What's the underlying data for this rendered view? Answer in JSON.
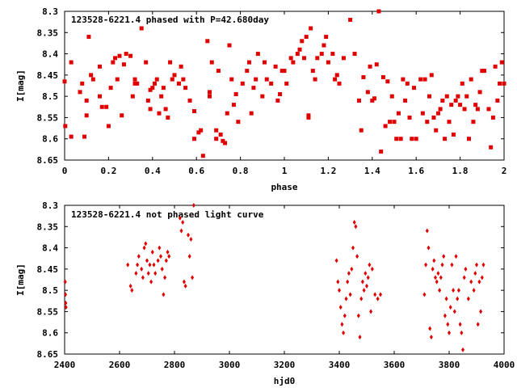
{
  "chart_data": [
    {
      "type": "scatter",
      "title": "123528-6221.4 phased with P=42.680day",
      "xlabel": "phase",
      "ylabel": "I[mag]",
      "xlim": [
        0,
        2
      ],
      "ylim": [
        8.3,
        8.65
      ],
      "y_inverted": true,
      "xticks": [
        "0",
        "0.2",
        "0.4",
        "0.6",
        "0.8",
        "1",
        "1.2",
        "1.4",
        "1.6",
        "1.8",
        "2"
      ],
      "xtick_values": [
        0,
        0.2,
        0.4,
        0.6,
        0.8,
        1.0,
        1.2,
        1.4,
        1.6,
        1.8,
        2.0
      ],
      "yticks": [
        "8.3",
        "8.35",
        "8.4",
        "8.45",
        "8.5",
        "8.55",
        "8.6",
        "8.65"
      ],
      "ytick_values": [
        8.3,
        8.35,
        8.4,
        8.45,
        8.5,
        8.55,
        8.6,
        8.65
      ],
      "marker_color": "#e00000",
      "marker": "square",
      "points": [
        [
          0.0,
          8.465
        ],
        [
          0.003,
          8.57
        ],
        [
          0.03,
          8.595
        ],
        [
          0.03,
          8.42
        ],
        [
          0.07,
          8.49
        ],
        [
          0.08,
          8.47
        ],
        [
          0.1,
          8.51
        ],
        [
          0.1,
          8.545
        ],
        [
          0.09,
          8.595
        ],
        [
          0.11,
          8.36
        ],
        [
          0.12,
          8.45
        ],
        [
          0.13,
          8.46
        ],
        [
          0.16,
          8.43
        ],
        [
          0.16,
          8.5
        ],
        [
          0.17,
          8.525
        ],
        [
          0.19,
          8.525
        ],
        [
          0.2,
          8.57
        ],
        [
          0.21,
          8.48
        ],
        [
          0.22,
          8.42
        ],
        [
          0.23,
          8.41
        ],
        [
          0.24,
          8.46
        ],
        [
          0.25,
          8.405
        ],
        [
          0.26,
          8.545
        ],
        [
          0.27,
          8.425
        ],
        [
          0.28,
          8.4
        ],
        [
          0.3,
          8.405
        ],
        [
          0.31,
          8.5
        ],
        [
          0.32,
          8.47
        ],
        [
          0.32,
          8.46
        ],
        [
          0.33,
          8.47
        ],
        [
          0.35,
          8.34
        ],
        [
          0.37,
          8.42
        ],
        [
          0.38,
          8.51
        ],
        [
          0.39,
          8.53
        ],
        [
          0.39,
          8.485
        ],
        [
          0.4,
          8.48
        ],
        [
          0.41,
          8.47
        ],
        [
          0.42,
          8.46
        ],
        [
          0.43,
          8.54
        ],
        [
          0.44,
          8.5
        ],
        [
          0.45,
          8.48
        ],
        [
          0.46,
          8.53
        ],
        [
          0.47,
          8.55
        ],
        [
          0.48,
          8.42
        ],
        [
          0.49,
          8.46
        ],
        [
          0.5,
          8.45
        ],
        [
          0.52,
          8.47
        ],
        [
          0.53,
          8.43
        ],
        [
          0.54,
          8.46
        ],
        [
          0.55,
          8.48
        ],
        [
          0.57,
          8.51
        ],
        [
          0.59,
          8.535
        ],
        [
          0.59,
          8.6
        ],
        [
          0.61,
          8.585
        ],
        [
          0.62,
          8.58
        ],
        [
          0.63,
          8.64
        ],
        [
          0.65,
          8.37
        ],
        [
          0.66,
          8.5
        ],
        [
          0.66,
          8.49
        ],
        [
          0.67,
          8.42
        ],
        [
          0.69,
          8.58
        ],
        [
          0.69,
          8.6
        ],
        [
          0.7,
          8.44
        ],
        [
          0.71,
          8.59
        ],
        [
          0.72,
          8.605
        ],
        [
          0.73,
          8.61
        ],
        [
          0.74,
          8.54
        ],
        [
          0.75,
          8.38
        ],
        [
          0.76,
          8.46
        ],
        [
          0.77,
          8.52
        ],
        [
          0.78,
          8.495
        ],
        [
          0.79,
          8.56
        ],
        [
          0.81,
          8.47
        ],
        [
          0.83,
          8.44
        ],
        [
          0.84,
          8.42
        ],
        [
          0.85,
          8.54
        ],
        [
          0.86,
          8.48
        ],
        [
          0.87,
          8.46
        ],
        [
          0.88,
          8.4
        ],
        [
          0.9,
          8.5
        ],
        [
          0.91,
          8.42
        ],
        [
          0.92,
          8.46
        ],
        [
          0.94,
          8.47
        ],
        [
          0.96,
          8.43
        ],
        [
          0.97,
          8.51
        ],
        [
          0.98,
          8.495
        ],
        [
          0.99,
          8.44
        ],
        [
          1.0,
          8.44
        ],
        [
          1.01,
          8.47
        ],
        [
          1.03,
          8.41
        ],
        [
          1.04,
          8.42
        ],
        [
          1.06,
          8.4
        ],
        [
          1.07,
          8.39
        ],
        [
          1.08,
          8.37
        ],
        [
          1.09,
          8.41
        ],
        [
          1.1,
          8.36
        ],
        [
          1.12,
          8.34
        ],
        [
          1.11,
          8.55
        ],
        [
          1.11,
          8.545
        ],
        [
          1.13,
          8.44
        ],
        [
          1.14,
          8.46
        ],
        [
          1.15,
          8.41
        ],
        [
          1.17,
          8.4
        ],
        [
          1.18,
          8.38
        ],
        [
          1.19,
          8.36
        ],
        [
          1.2,
          8.42
        ],
        [
          1.22,
          8.4
        ],
        [
          1.23,
          8.46
        ],
        [
          1.24,
          8.45
        ],
        [
          1.25,
          8.47
        ],
        [
          1.27,
          8.41
        ],
        [
          1.3,
          8.32
        ],
        [
          1.32,
          8.4
        ],
        [
          1.34,
          8.51
        ],
        [
          1.35,
          8.58
        ],
        [
          1.36,
          8.455
        ],
        [
          1.38,
          8.49
        ],
        [
          1.39,
          8.43
        ],
        [
          1.4,
          8.51
        ],
        [
          1.41,
          8.505
        ],
        [
          1.42,
          8.425
        ],
        [
          1.43,
          8.3
        ],
        [
          1.44,
          8.63
        ],
        [
          1.45,
          8.455
        ],
        [
          1.46,
          8.57
        ],
        [
          1.47,
          8.465
        ],
        [
          1.48,
          8.56
        ],
        [
          1.49,
          8.5
        ],
        [
          1.5,
          8.56
        ],
        [
          1.51,
          8.6
        ],
        [
          1.52,
          8.54
        ],
        [
          1.53,
          8.6
        ],
        [
          1.54,
          8.46
        ],
        [
          1.55,
          8.51
        ],
        [
          1.56,
          8.47
        ],
        [
          1.57,
          8.55
        ],
        [
          1.58,
          8.6
        ],
        [
          1.59,
          8.48
        ],
        [
          1.6,
          8.6
        ],
        [
          1.62,
          8.46
        ],
        [
          1.63,
          8.54
        ],
        [
          1.64,
          8.46
        ],
        [
          1.65,
          8.56
        ],
        [
          1.66,
          8.5
        ],
        [
          1.67,
          8.45
        ],
        [
          1.68,
          8.55
        ],
        [
          1.69,
          8.58
        ],
        [
          1.7,
          8.54
        ],
        [
          1.71,
          8.53
        ],
        [
          1.72,
          8.51
        ],
        [
          1.73,
          8.6
        ],
        [
          1.74,
          8.5
        ],
        [
          1.75,
          8.56
        ],
        [
          1.76,
          8.52
        ],
        [
          1.77,
          8.59
        ],
        [
          1.78,
          8.51
        ],
        [
          1.79,
          8.5
        ],
        [
          1.8,
          8.52
        ],
        [
          1.81,
          8.47
        ],
        [
          1.82,
          8.53
        ],
        [
          1.83,
          8.5
        ],
        [
          1.84,
          8.6
        ],
        [
          1.85,
          8.46
        ],
        [
          1.86,
          8.56
        ],
        [
          1.87,
          8.52
        ],
        [
          1.88,
          8.53
        ],
        [
          1.89,
          8.49
        ],
        [
          1.9,
          8.44
        ],
        [
          1.91,
          8.44
        ],
        [
          1.93,
          8.53
        ],
        [
          1.94,
          8.62
        ],
        [
          1.95,
          8.55
        ],
        [
          1.96,
          8.43
        ],
        [
          1.97,
          8.51
        ],
        [
          1.98,
          8.47
        ],
        [
          1.99,
          8.42
        ],
        [
          2.0,
          8.47
        ]
      ]
    },
    {
      "type": "scatter",
      "title": "123528-6221.4 not phased light curve",
      "xlabel": "hjd0",
      "ylabel": "I[mag]",
      "xlim": [
        2400,
        4000
      ],
      "ylim": [
        8.3,
        8.65
      ],
      "y_inverted": true,
      "xticks": [
        "2400",
        "2600",
        "2800",
        "3000",
        "3200",
        "3400",
        "3600",
        "3800",
        "4000"
      ],
      "xtick_values": [
        2400,
        2600,
        2800,
        3000,
        3200,
        3400,
        3600,
        3800,
        4000
      ],
      "yticks": [
        "8.3",
        "8.35",
        "8.4",
        "8.45",
        "8.5",
        "8.55",
        "8.6",
        "8.65"
      ],
      "ytick_values": [
        8.3,
        8.35,
        8.4,
        8.45,
        8.5,
        8.55,
        8.6,
        8.65
      ],
      "marker_color": "#e00000",
      "marker": "diamond",
      "points": [
        [
          2402,
          8.48
        ],
        [
          2403,
          8.51
        ],
        [
          2404,
          8.53
        ],
        [
          2405,
          8.54
        ],
        [
          2630,
          8.44
        ],
        [
          2640,
          8.49
        ],
        [
          2645,
          8.5
        ],
        [
          2660,
          8.46
        ],
        [
          2665,
          8.44
        ],
        [
          2670,
          8.42
        ],
        [
          2680,
          8.45
        ],
        [
          2685,
          8.47
        ],
        [
          2690,
          8.4
        ],
        [
          2695,
          8.39
        ],
        [
          2700,
          8.43
        ],
        [
          2705,
          8.46
        ],
        [
          2710,
          8.44
        ],
        [
          2715,
          8.48
        ],
        [
          2720,
          8.41
        ],
        [
          2725,
          8.44
        ],
        [
          2730,
          8.46
        ],
        [
          2740,
          8.43
        ],
        [
          2745,
          8.4
        ],
        [
          2750,
          8.42
        ],
        [
          2755,
          8.45
        ],
        [
          2760,
          8.51
        ],
        [
          2765,
          8.47
        ],
        [
          2770,
          8.43
        ],
        [
          2775,
          8.41
        ],
        [
          2780,
          8.42
        ],
        [
          2820,
          8.33
        ],
        [
          2825,
          8.36
        ],
        [
          2830,
          8.34
        ],
        [
          2835,
          8.48
        ],
        [
          2840,
          8.49
        ],
        [
          2850,
          8.37
        ],
        [
          2855,
          8.42
        ],
        [
          2860,
          8.38
        ],
        [
          2865,
          8.47
        ],
        [
          2870,
          8.3
        ],
        [
          3390,
          8.43
        ],
        [
          3395,
          8.48
        ],
        [
          3400,
          8.5
        ],
        [
          3405,
          8.54
        ],
        [
          3410,
          8.58
        ],
        [
          3415,
          8.6
        ],
        [
          3420,
          8.56
        ],
        [
          3425,
          8.52
        ],
        [
          3430,
          8.48
        ],
        [
          3435,
          8.46
        ],
        [
          3440,
          8.51
        ],
        [
          3445,
          8.45
        ],
        [
          3450,
          8.4
        ],
        [
          3455,
          8.34
        ],
        [
          3460,
          8.35
        ],
        [
          3465,
          8.42
        ],
        [
          3470,
          8.56
        ],
        [
          3475,
          8.61
        ],
        [
          3480,
          8.52
        ],
        [
          3485,
          8.48
        ],
        [
          3490,
          8.5
        ],
        [
          3495,
          8.46
        ],
        [
          3500,
          8.49
        ],
        [
          3505,
          8.47
        ],
        [
          3510,
          8.44
        ],
        [
          3515,
          8.55
        ],
        [
          3520,
          8.45
        ],
        [
          3530,
          8.51
        ],
        [
          3540,
          8.52
        ],
        [
          3550,
          8.51
        ],
        [
          3710,
          8.51
        ],
        [
          3715,
          8.44
        ],
        [
          3720,
          8.36
        ],
        [
          3725,
          8.4
        ],
        [
          3730,
          8.59
        ],
        [
          3735,
          8.61
        ],
        [
          3740,
          8.45
        ],
        [
          3745,
          8.43
        ],
        [
          3750,
          8.47
        ],
        [
          3755,
          8.48
        ],
        [
          3760,
          8.46
        ],
        [
          3765,
          8.5
        ],
        [
          3770,
          8.47
        ],
        [
          3775,
          8.44
        ],
        [
          3780,
          8.42
        ],
        [
          3785,
          8.56
        ],
        [
          3790,
          8.52
        ],
        [
          3795,
          8.58
        ],
        [
          3800,
          8.6
        ],
        [
          3805,
          8.54
        ],
        [
          3810,
          8.44
        ],
        [
          3815,
          8.5
        ],
        [
          3820,
          8.55
        ],
        [
          3825,
          8.42
        ],
        [
          3830,
          8.52
        ],
        [
          3835,
          8.5
        ],
        [
          3840,
          8.58
        ],
        [
          3845,
          8.6
        ],
        [
          3850,
          8.64
        ],
        [
          3855,
          8.47
        ],
        [
          3860,
          8.45
        ],
        [
          3870,
          8.52
        ],
        [
          3880,
          8.48
        ],
        [
          3890,
          8.5
        ],
        [
          3895,
          8.46
        ],
        [
          3900,
          8.44
        ],
        [
          3905,
          8.58
        ],
        [
          3910,
          8.48
        ],
        [
          3915,
          8.55
        ],
        [
          3920,
          8.47
        ],
        [
          3925,
          8.44
        ]
      ]
    }
  ]
}
